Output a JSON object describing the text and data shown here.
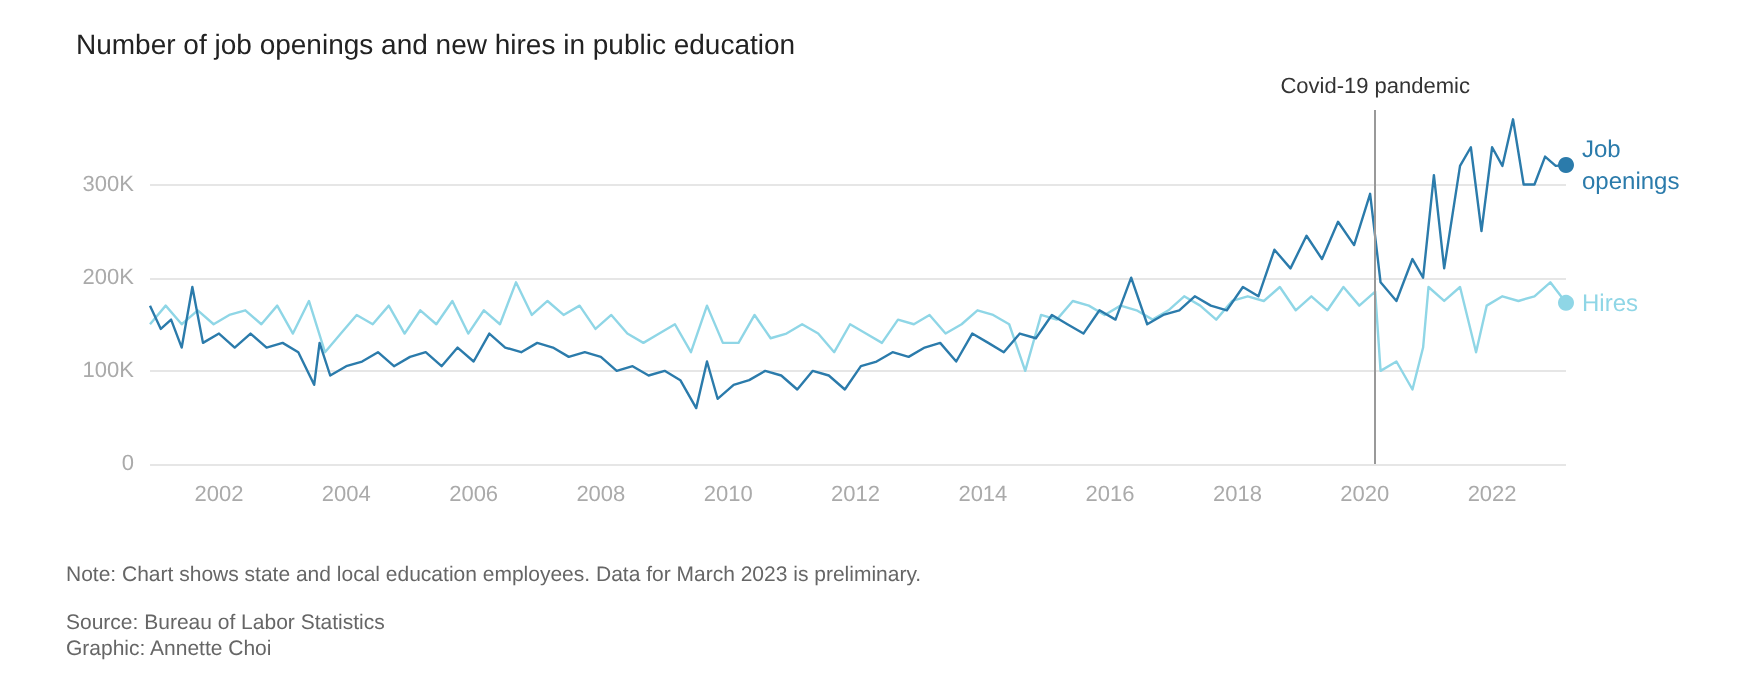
{
  "chart_data": {
    "type": "line",
    "title": "Number of job openings and new hires in public education",
    "xlim": [
      "2000-12",
      "2023-03"
    ],
    "xticks": [
      "2002",
      "2004",
      "2006",
      "2008",
      "2010",
      "2012",
      "2014",
      "2016",
      "2018",
      "2020",
      "2022"
    ],
    "ylim": [
      0,
      380
    ],
    "yticks": [
      0,
      {
        "value": 100,
        "label": "100K"
      },
      {
        "value": 200,
        "label": "200K"
      },
      {
        "value": 300,
        "label": "300K"
      }
    ],
    "grid": "y",
    "legend": false,
    "ref_lines": [
      {
        "axis": "x",
        "value": "2020-03",
        "label": "Covid-19 pandemic",
        "color": "#999999"
      }
    ],
    "annotations": [
      "Note: Chart shows state and local education employees. Data for March 2023 is preliminary.",
      "Source: Bureau of Labor Statistics",
      "Graphic: Annette Choi"
    ],
    "series": [
      {
        "name": "Job openings",
        "color": "#2b7bab",
        "x": [
          "2000-12",
          "2001-02",
          "2001-04",
          "2001-06",
          "2001-08",
          "2001-10",
          "2002-01",
          "2002-04",
          "2002-07",
          "2002-10",
          "2003-01",
          "2003-04",
          "2003-07",
          "2003-08",
          "2003-10",
          "2004-01",
          "2004-04",
          "2004-07",
          "2004-10",
          "2005-01",
          "2005-04",
          "2005-07",
          "2005-10",
          "2006-01",
          "2006-04",
          "2006-07",
          "2006-10",
          "2007-01",
          "2007-04",
          "2007-07",
          "2007-10",
          "2008-01",
          "2008-04",
          "2008-07",
          "2008-10",
          "2009-01",
          "2009-04",
          "2009-07",
          "2009-09",
          "2009-11",
          "2010-02",
          "2010-05",
          "2010-08",
          "2010-11",
          "2011-02",
          "2011-05",
          "2011-08",
          "2011-11",
          "2012-02",
          "2012-05",
          "2012-08",
          "2012-11",
          "2013-02",
          "2013-05",
          "2013-08",
          "2013-11",
          "2014-02",
          "2014-05",
          "2014-08",
          "2014-11",
          "2015-02",
          "2015-05",
          "2015-08",
          "2015-11",
          "2016-02",
          "2016-05",
          "2016-08",
          "2016-11",
          "2017-02",
          "2017-05",
          "2017-08",
          "2017-11",
          "2018-02",
          "2018-05",
          "2018-08",
          "2018-11",
          "2019-02",
          "2019-05",
          "2019-08",
          "2019-11",
          "2020-02",
          "2020-04",
          "2020-07",
          "2020-10",
          "2020-12",
          "2021-02",
          "2021-04",
          "2021-07",
          "2021-09",
          "2021-11",
          "2022-01",
          "2022-03",
          "2022-05",
          "2022-07",
          "2022-09",
          "2022-11",
          "2023-01",
          "2023-03"
        ],
        "values": [
          170,
          145,
          155,
          125,
          190,
          130,
          140,
          125,
          140,
          125,
          130,
          120,
          85,
          130,
          95,
          105,
          110,
          120,
          105,
          115,
          120,
          105,
          125,
          110,
          140,
          125,
          120,
          130,
          125,
          115,
          120,
          115,
          100,
          105,
          95,
          100,
          90,
          60,
          110,
          70,
          85,
          90,
          100,
          95,
          80,
          100,
          95,
          80,
          105,
          110,
          120,
          115,
          125,
          130,
          110,
          140,
          130,
          120,
          140,
          135,
          160,
          150,
          140,
          165,
          155,
          200,
          150,
          160,
          165,
          180,
          170,
          165,
          190,
          180,
          230,
          210,
          245,
          220,
          260,
          235,
          290,
          195,
          175,
          220,
          200,
          310,
          210,
          320,
          340,
          250,
          340,
          320,
          370,
          300,
          300,
          330,
          320,
          321
        ]
      },
      {
        "name": "Hires",
        "color": "#8fd6e6",
        "x": [
          "2000-12",
          "2001-03",
          "2001-06",
          "2001-09",
          "2001-12",
          "2002-03",
          "2002-06",
          "2002-09",
          "2002-12",
          "2003-03",
          "2003-06",
          "2003-09",
          "2003-12",
          "2004-03",
          "2004-06",
          "2004-09",
          "2004-12",
          "2005-03",
          "2005-06",
          "2005-09",
          "2005-12",
          "2006-03",
          "2006-06",
          "2006-09",
          "2006-12",
          "2007-03",
          "2007-06",
          "2007-09",
          "2007-12",
          "2008-03",
          "2008-06",
          "2008-09",
          "2008-12",
          "2009-03",
          "2009-06",
          "2009-09",
          "2009-12",
          "2010-03",
          "2010-06",
          "2010-09",
          "2010-12",
          "2011-03",
          "2011-06",
          "2011-09",
          "2011-12",
          "2012-03",
          "2012-06",
          "2012-09",
          "2012-12",
          "2013-03",
          "2013-06",
          "2013-09",
          "2013-12",
          "2014-03",
          "2014-06",
          "2014-09",
          "2014-12",
          "2015-03",
          "2015-06",
          "2015-09",
          "2015-12",
          "2016-03",
          "2016-06",
          "2016-09",
          "2016-12",
          "2017-03",
          "2017-06",
          "2017-09",
          "2017-12",
          "2018-03",
          "2018-06",
          "2018-09",
          "2018-12",
          "2019-03",
          "2019-06",
          "2019-09",
          "2019-12",
          "2020-03",
          "2020-04",
          "2020-07",
          "2020-10",
          "2020-12",
          "2021-01",
          "2021-04",
          "2021-07",
          "2021-10",
          "2021-12",
          "2022-03",
          "2022-06",
          "2022-09",
          "2022-12",
          "2023-03"
        ],
        "values": [
          150,
          170,
          150,
          165,
          150,
          160,
          165,
          150,
          170,
          140,
          175,
          120,
          140,
          160,
          150,
          170,
          140,
          165,
          150,
          175,
          140,
          165,
          150,
          195,
          160,
          175,
          160,
          170,
          145,
          160,
          140,
          130,
          140,
          150,
          120,
          170,
          130,
          130,
          160,
          135,
          140,
          150,
          140,
          120,
          150,
          140,
          130,
          155,
          150,
          160,
          140,
          150,
          165,
          160,
          150,
          100,
          160,
          155,
          175,
          170,
          160,
          170,
          165,
          155,
          165,
          180,
          170,
          155,
          175,
          180,
          175,
          190,
          165,
          180,
          165,
          190,
          170,
          185,
          100,
          110,
          80,
          125,
          190,
          175,
          190,
          120,
          170,
          180,
          175,
          180,
          195,
          173
        ]
      }
    ]
  }
}
